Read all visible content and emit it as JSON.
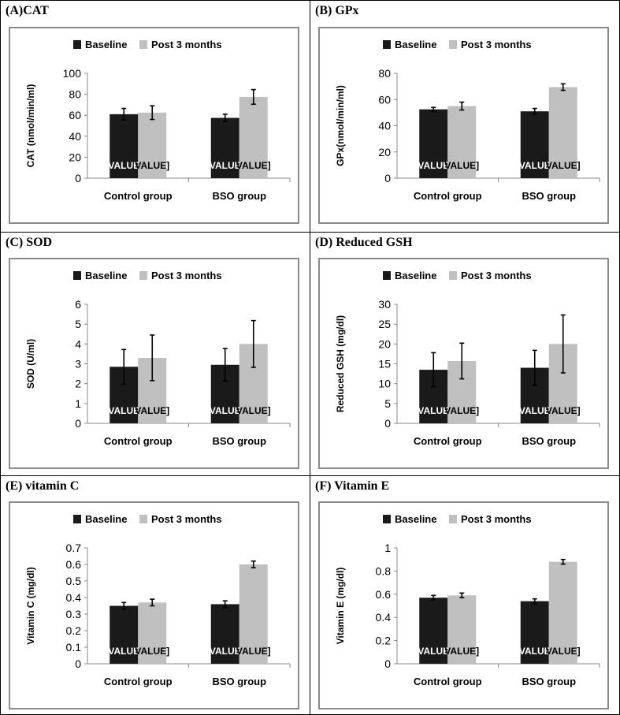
{
  "series_names": [
    "Baseline",
    "Post 3 months"
  ],
  "colors": {
    "baseline": "#1a1a1a",
    "post": "#c0c0c0",
    "axis": "#888888",
    "frame": "#8a8a8a"
  },
  "chart_data": [
    {
      "panel_title": "(A)CAT",
      "type": "bar",
      "ylabel": "CAT (nmol/min/ml)",
      "categories": [
        "Control group",
        "BSO group"
      ],
      "ylim": [
        0,
        100
      ],
      "yticks": [
        "0",
        "20",
        "40",
        "60",
        "80",
        "100"
      ],
      "tick_values": [
        0,
        20,
        40,
        60,
        80,
        100
      ],
      "series": [
        {
          "name": "Baseline",
          "values": [
            61,
            57.5
          ],
          "errors": [
            5.5,
            3.5
          ],
          "bar_labels": [
            "VALUE",
            "VALUE"
          ]
        },
        {
          "name": "Post 3 months",
          "values": [
            62.5,
            77.5
          ],
          "errors": [
            6.5,
            7
          ],
          "bar_labels": [
            "VALUE]",
            "VALUE]"
          ]
        }
      ]
    },
    {
      "panel_title": "(B) GPx",
      "type": "bar",
      "ylabel": "GPx(nmol/min/ml)",
      "categories": [
        "Control group",
        "BSO group"
      ],
      "ylim": [
        0,
        80
      ],
      "yticks": [
        "0",
        "20",
        "40",
        "60",
        "80"
      ],
      "tick_values": [
        0,
        20,
        40,
        60,
        80
      ],
      "series": [
        {
          "name": "Baseline",
          "values": [
            52.5,
            51
          ],
          "errors": [
            1.5,
            2.2
          ],
          "bar_labels": [
            "VALUE",
            "VALUE"
          ]
        },
        {
          "name": "Post 3 months",
          "values": [
            55,
            69.5
          ],
          "errors": [
            3,
            2.5
          ],
          "bar_labels": [
            "VALUE]",
            "VALUE]"
          ]
        }
      ]
    },
    {
      "panel_title": "(C) SOD",
      "type": "bar",
      "ylabel": "SOD (U/ml)",
      "categories": [
        "Control group",
        "BSO group"
      ],
      "ylim": [
        0,
        6
      ],
      "yticks": [
        "0",
        "1",
        "2",
        "3",
        "4",
        "5",
        "6"
      ],
      "tick_values": [
        0,
        1,
        2,
        3,
        4,
        5,
        6
      ],
      "series": [
        {
          "name": "Baseline",
          "values": [
            2.85,
            2.95
          ],
          "errors": [
            0.87,
            0.82
          ],
          "bar_labels": [
            "VALUE",
            "VALUE"
          ]
        },
        {
          "name": "Post 3 months",
          "values": [
            3.3,
            4.0
          ],
          "errors": [
            1.15,
            1.18
          ],
          "bar_labels": [
            "VALUE]",
            "VALUE]"
          ]
        }
      ]
    },
    {
      "panel_title": "(D) Reduced GSH",
      "type": "bar",
      "ylabel": "Reduced GSH (mg/dl)",
      "categories": [
        "Control group",
        "BSO group"
      ],
      "ylim": [
        0,
        30
      ],
      "yticks": [
        "0",
        "5",
        "10",
        "15",
        "20",
        "25",
        "30"
      ],
      "tick_values": [
        0,
        5,
        10,
        15,
        20,
        25,
        30
      ],
      "series": [
        {
          "name": "Baseline",
          "values": [
            13.5,
            14
          ],
          "errors": [
            4.3,
            4.4
          ],
          "bar_labels": [
            "VALUE",
            "VALUE"
          ]
        },
        {
          "name": "Post 3 months",
          "values": [
            15.7,
            20
          ],
          "errors": [
            4.5,
            7.3
          ],
          "bar_labels": [
            "VALUE]",
            "VALUE]"
          ]
        }
      ]
    },
    {
      "panel_title": "(E) vitamin C",
      "type": "bar",
      "ylabel": "Vitamin C (mg/dl)",
      "categories": [
        "Control group",
        "BSO group"
      ],
      "ylim": [
        0,
        0.7
      ],
      "yticks": [
        "0",
        "0.1",
        "0.2",
        "0.3",
        "0.4",
        "0.5",
        "0.6",
        "0.7"
      ],
      "tick_values": [
        0,
        0.1,
        0.2,
        0.3,
        0.4,
        0.5,
        0.6,
        0.7
      ],
      "series": [
        {
          "name": "Baseline",
          "values": [
            0.35,
            0.36
          ],
          "errors": [
            0.02,
            0.02
          ],
          "bar_labels": [
            "VALUE",
            "VALUE"
          ]
        },
        {
          "name": "Post 3 months",
          "values": [
            0.37,
            0.6
          ],
          "errors": [
            0.02,
            0.02
          ],
          "bar_labels": [
            "VALUE]",
            "VALUE]"
          ]
        }
      ]
    },
    {
      "panel_title": "(F) Vitamin E",
      "type": "bar",
      "ylabel": "Vitamin E (mg/dl)",
      "categories": [
        "Control group",
        "BSO group"
      ],
      "ylim": [
        0,
        1
      ],
      "yticks": [
        "0",
        "0.2",
        "0.4",
        "0.6",
        "0.8",
        "1"
      ],
      "tick_values": [
        0,
        0.2,
        0.4,
        0.6,
        0.8,
        1
      ],
      "series": [
        {
          "name": "Baseline",
          "values": [
            0.57,
            0.54
          ],
          "errors": [
            0.02,
            0.02
          ],
          "bar_labels": [
            "VALUE",
            "VALUE"
          ]
        },
        {
          "name": "Post 3 months",
          "values": [
            0.59,
            0.88
          ],
          "errors": [
            0.02,
            0.02
          ],
          "bar_labels": [
            "VALUE]",
            "VALUE]"
          ]
        }
      ]
    }
  ]
}
